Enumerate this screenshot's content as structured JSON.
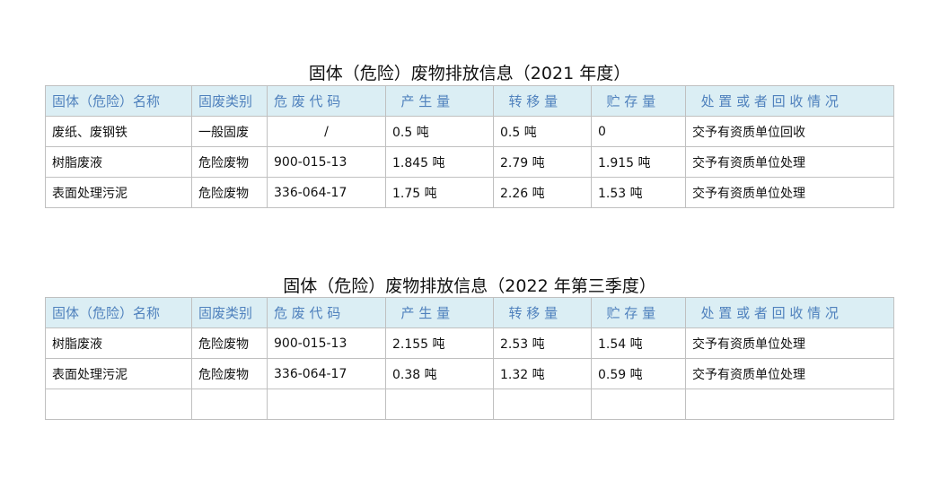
{
  "colors": {
    "header_bg": "#dbeef4",
    "header_text": "#4f81bd",
    "border": "#c0c0c0"
  },
  "headers": [
    "固体（危险）名称",
    "固废类别",
    "危 废 代 码",
    "  产 生 量",
    "  转 移 量",
    "  贮 存 量",
    "  处 置 或 者 回 收 情 况"
  ],
  "table1": {
    "title": "固体（危险）废物排放信息（2021 年度）",
    "rows": [
      [
        "废纸、废钢铁",
        "一般固废",
        "/",
        "0.5 吨",
        "0.5 吨",
        "0",
        "交予有资质单位回收"
      ],
      [
        "树脂废液",
        "危险废物",
        "900-015-13",
        "1.845 吨",
        "2.79 吨",
        "1.915 吨",
        "交予有资质单位处理"
      ],
      [
        "表面处理污泥",
        "危险废物",
        "336-064-17",
        "1.75 吨",
        "2.26 吨",
        "1.53 吨",
        "交予有资质单位处理"
      ]
    ]
  },
  "table2": {
    "title": "固体（危险）废物排放信息（2022 年第三季度）",
    "rows": [
      [
        "树脂废液",
        "危险废物",
        "900-015-13",
        "2.155 吨",
        "2.53 吨",
        "1.54 吨",
        "交予有资质单位处理"
      ],
      [
        "表面处理污泥",
        "危险废物",
        "336-064-17",
        "0.38 吨",
        "1.32 吨",
        "0.59 吨",
        "交予有资质单位处理"
      ],
      [
        "",
        "",
        "",
        "",
        "",
        "",
        ""
      ]
    ]
  }
}
